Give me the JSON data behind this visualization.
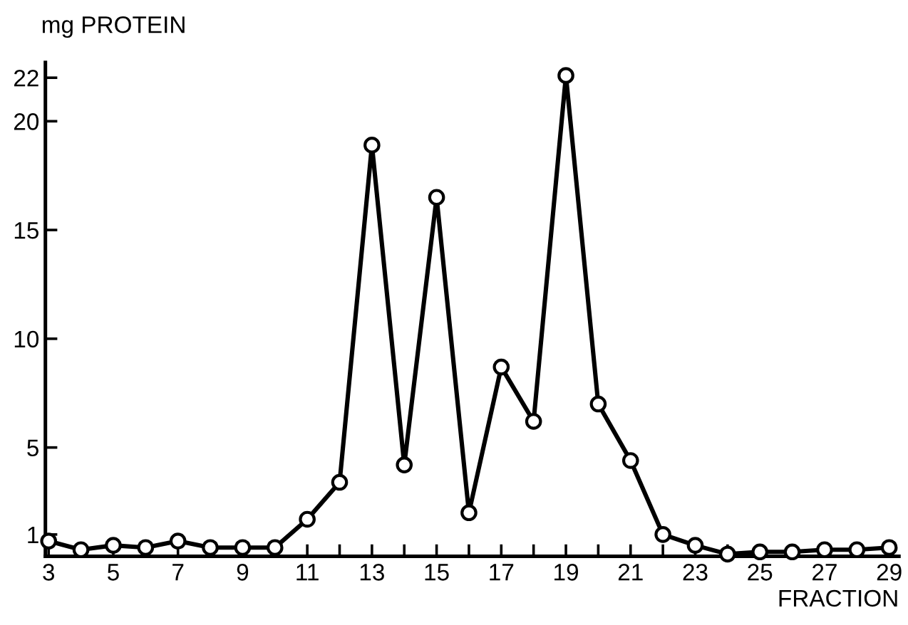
{
  "chart_data": {
    "type": "line",
    "ylabel": "mg PROTEIN",
    "xlabel": "FRACTION",
    "x": [
      3,
      4,
      5,
      6,
      7,
      8,
      9,
      10,
      11,
      12,
      13,
      14,
      15,
      16,
      17,
      18,
      19,
      20,
      21,
      22,
      23,
      24,
      25,
      26,
      27,
      28,
      29
    ],
    "series": [
      {
        "color": "#000000",
        "values": [
          0.7,
          0.3,
          0.5,
          0.4,
          0.7,
          0.4,
          0.4,
          0.4,
          1.7,
          3.4,
          18.9,
          4.2,
          16.5,
          2.0,
          8.7,
          6.2,
          22.1,
          7.0,
          4.4,
          1.0,
          0.5,
          0.1,
          0.2,
          0.2,
          0.3,
          0.3,
          0.4
        ]
      }
    ],
    "xlim": [
      2.9,
      29.3
    ],
    "ylim": [
      0,
      22.7
    ],
    "xticks": [
      3,
      {
        "value": 4,
        "label": null
      },
      5,
      {
        "value": 6,
        "label": null
      },
      7,
      {
        "value": 8,
        "label": null
      },
      9,
      {
        "value": 10,
        "label": null
      },
      11,
      {
        "value": 12,
        "label": null
      },
      13,
      {
        "value": 14,
        "label": null
      },
      15,
      {
        "value": 16,
        "label": null
      },
      17,
      {
        "value": 18,
        "label": null
      },
      19,
      {
        "value": 20,
        "label": null
      },
      21,
      {
        "value": 22,
        "label": null
      },
      23,
      {
        "value": 24,
        "label": null
      },
      25,
      {
        "value": 26,
        "label": null
      },
      27,
      {
        "value": 28,
        "label": null
      },
      29
    ],
    "yticks": [
      1,
      5,
      10,
      15,
      20,
      22
    ],
    "marker": "circle",
    "line_style": "solid",
    "grid": false,
    "legend": false
  }
}
